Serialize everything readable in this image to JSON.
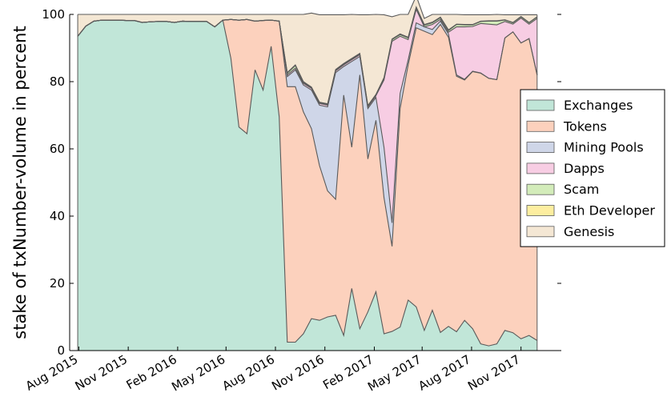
{
  "chart_data": {
    "type": "area",
    "stacked": true,
    "ylabel": "stake of txNumber-volume in percent",
    "xlabel": "",
    "ylim": [
      0,
      100
    ],
    "xlim": [
      "2015-07-15",
      "2018-01-15"
    ],
    "yticks": [
      0,
      20,
      40,
      60,
      80,
      100
    ],
    "xticks": [
      {
        "date": "2015-08-01",
        "label": "Aug 2015"
      },
      {
        "date": "2015-11-01",
        "label": "Nov 2015"
      },
      {
        "date": "2016-02-01",
        "label": "Feb 2016"
      },
      {
        "date": "2016-05-01",
        "label": "May 2016"
      },
      {
        "date": "2016-08-01",
        "label": "Aug 2016"
      },
      {
        "date": "2016-11-01",
        "label": "Nov 2016"
      },
      {
        "date": "2017-02-01",
        "label": "Feb 2017"
      },
      {
        "date": "2017-05-01",
        "label": "May 2017"
      },
      {
        "date": "2017-08-01",
        "label": "Aug 2017"
      },
      {
        "date": "2017-11-01",
        "label": "Nov 2017"
      }
    ],
    "legend_position": "right",
    "x": [
      "2015-07-30",
      "2015-08-14",
      "2015-08-29",
      "2015-09-13",
      "2015-09-28",
      "2015-10-13",
      "2015-10-28",
      "2015-11-12",
      "2015-11-27",
      "2015-12-12",
      "2015-12-27",
      "2016-01-11",
      "2016-01-26",
      "2016-02-10",
      "2016-02-25",
      "2016-03-11",
      "2016-03-26",
      "2016-04-10",
      "2016-04-25",
      "2016-05-10",
      "2016-05-25",
      "2016-06-09",
      "2016-06-24",
      "2016-07-09",
      "2016-07-24",
      "2016-08-08",
      "2016-08-23",
      "2016-09-07",
      "2016-09-22",
      "2016-10-07",
      "2016-10-22",
      "2016-11-06",
      "2016-11-21",
      "2016-12-06",
      "2016-12-21",
      "2017-01-05",
      "2017-01-20",
      "2017-02-04",
      "2017-02-19",
      "2017-03-06",
      "2017-03-21",
      "2017-04-05",
      "2017-04-20",
      "2017-05-05",
      "2017-05-20",
      "2017-06-04",
      "2017-06-19",
      "2017-07-04",
      "2017-07-19",
      "2017-08-03",
      "2017-08-18",
      "2017-09-02",
      "2017-09-17",
      "2017-10-02",
      "2017-10-17",
      "2017-11-01",
      "2017-11-16",
      "2017-12-01"
    ],
    "series": [
      {
        "name": "Exchanges",
        "color": "#c1e6d8",
        "values": [
          93.5,
          96.5,
          98,
          98.3,
          98.3,
          98.3,
          98.2,
          98.2,
          97.6,
          97.8,
          97.9,
          97.9,
          97.6,
          98,
          97.9,
          97.9,
          97.9,
          96.3,
          98.3,
          87,
          66.5,
          64.5,
          83.5,
          77.5,
          90.5,
          69.5,
          2.5,
          2.5,
          5,
          9.5,
          9,
          10,
          10.5,
          4.5,
          18.5,
          6.5,
          11.5,
          17.5,
          5,
          5.7,
          7,
          15,
          13,
          6,
          12,
          5.4,
          7.2,
          5.6,
          9,
          6.5,
          2,
          1.4,
          2,
          6,
          5.3,
          3.5,
          4.5,
          3
        ]
      },
      {
        "name": "Tokens",
        "color": "#fcd1bd",
        "values": [
          0,
          0,
          0,
          0,
          0,
          0,
          0,
          0,
          0,
          0,
          0,
          0,
          0,
          0,
          0,
          0,
          0,
          0,
          0,
          11.5,
          31.8,
          34,
          14.5,
          20.7,
          7.8,
          28.5,
          76,
          76,
          66,
          56.5,
          46,
          37.5,
          34.5,
          71.5,
          42,
          75.5,
          45.5,
          51,
          40.5,
          25.3,
          65,
          70,
          83,
          89,
          82,
          91.6,
          86,
          76,
          71.5,
          76.5,
          80.5,
          79.6,
          78.6,
          87,
          89.5,
          88,
          88.3,
          79
        ]
      },
      {
        "name": "Mining Pools",
        "color": "#cfd6e8",
        "values": [
          0,
          0,
          0,
          0,
          0,
          0,
          0,
          0,
          0,
          0,
          0,
          0,
          0,
          0,
          0,
          0,
          0,
          0,
          0,
          0,
          0,
          0,
          0,
          0,
          0,
          0,
          3,
          5,
          8,
          11.5,
          18,
          25,
          37.7,
          8.5,
          25.5,
          5.5,
          15,
          6.8,
          15,
          7,
          4.5,
          1.5,
          1.5,
          1.3,
          1.5,
          1,
          1,
          0.4,
          0.2,
          0.1,
          0.1,
          0,
          0,
          0,
          0,
          0,
          0,
          0
        ]
      },
      {
        "name": "Dapps",
        "color": "#f7cde3",
        "values": [
          0,
          0,
          0,
          0,
          0,
          0,
          0,
          0,
          0,
          0,
          0,
          0,
          0,
          0,
          0,
          0,
          0,
          0,
          0,
          0,
          0,
          0,
          0,
          0,
          0,
          0,
          0.5,
          0.5,
          0.5,
          0.5,
          0.5,
          0.5,
          0.5,
          0.5,
          0.5,
          0.5,
          0.5,
          0.5,
          20,
          54,
          17,
          6,
          4,
          0,
          1.5,
          0.5,
          0.5,
          14.3,
          15.6,
          13.3,
          14.7,
          16.1,
          16.3,
          4.9,
          2.3,
          7.4,
          4.3,
          16.8
        ]
      },
      {
        "name": "Scam",
        "color": "#d3ecba",
        "values": [
          0,
          0,
          0,
          0,
          0,
          0,
          0,
          0,
          0,
          0,
          0,
          0,
          0,
          0,
          0,
          0,
          0,
          0,
          0,
          0,
          0,
          0,
          0,
          0,
          0,
          0,
          0.5,
          0.8,
          0.3,
          0.2,
          0.2,
          0.2,
          0.2,
          0.2,
          0.2,
          0.2,
          0.2,
          0.2,
          0.5,
          0.5,
          0.5,
          0.5,
          0.5,
          0.5,
          0.5,
          0.5,
          0.5,
          0.7,
          0.6,
          0.5,
          0.6,
          0.9,
          1.1,
          0.4,
          0.4,
          0.4,
          0.4,
          0.4
        ]
      },
      {
        "name": "Eth Developer",
        "color": "#fdeea0",
        "values": [
          0,
          0,
          0,
          0,
          0,
          0,
          0,
          0,
          0,
          0,
          0,
          0,
          0,
          0,
          0,
          0,
          0,
          0,
          0,
          0,
          0,
          0,
          0,
          0,
          0,
          0,
          0.2,
          0.2,
          0.2,
          0.2,
          0.2,
          0.2,
          0.2,
          0.2,
          0.2,
          0.2,
          0.2,
          0.2,
          0.2,
          0.2,
          0.2,
          0.2,
          0.2,
          0.2,
          0.2,
          0.2,
          0.2,
          0.1,
          0.1,
          0.1,
          0.1,
          0.1,
          0.1,
          0.1,
          0.1,
          0.1,
          0.1,
          0.1
        ]
      },
      {
        "name": "Genesis",
        "color": "#f4e7d4",
        "values": [
          6.5,
          3.5,
          2,
          1.7,
          1.7,
          1.7,
          1.8,
          1.8,
          2.4,
          2.2,
          2.1,
          2.1,
          2.4,
          2,
          2.1,
          2.1,
          2.1,
          3.7,
          1.7,
          1.5,
          1.7,
          1.5,
          2,
          1.8,
          1.7,
          2,
          17.3,
          15,
          20,
          22,
          26,
          26.5,
          16.3,
          14.5,
          13.1,
          11.5,
          27,
          23.8,
          18.7,
          6.6,
          5.8,
          6.8,
          3.3,
          1.8,
          2.3,
          0.8,
          4.6,
          2.9,
          2.9,
          2.9,
          1.9,
          1.8,
          1.9,
          1.5,
          2.3,
          0.5,
          2.3,
          0.6
        ]
      }
    ]
  }
}
